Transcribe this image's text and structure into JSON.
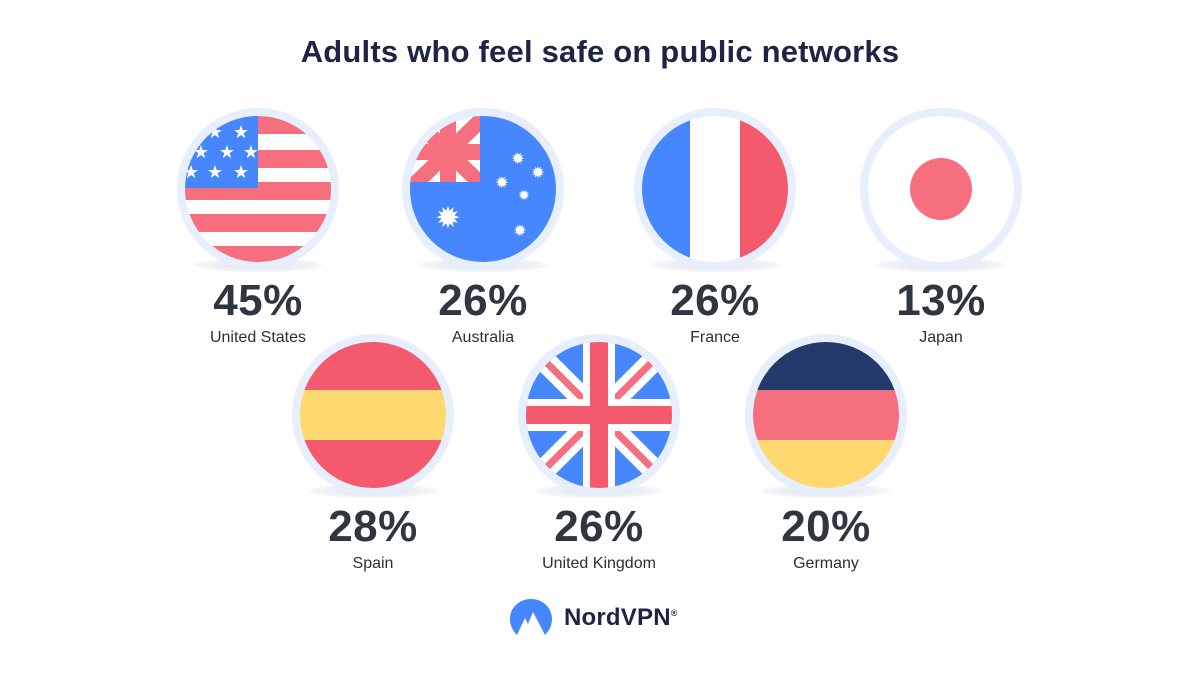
{
  "title": "Adults who feel safe on public networks",
  "chart_data": {
    "type": "bar",
    "title": "Adults who feel safe on public networks",
    "categories": [
      "United States",
      "Australia",
      "France",
      "Japan",
      "Spain",
      "United Kingdom",
      "Germany"
    ],
    "values": [
      45,
      26,
      26,
      13,
      28,
      26,
      20
    ],
    "value_labels": [
      "45%",
      "26%",
      "26%",
      "13%",
      "28%",
      "26%",
      "20%"
    ],
    "unit": "%"
  },
  "items": [
    {
      "country": "United States",
      "pct": "45%",
      "flag": "us-flag-icon"
    },
    {
      "country": "Australia",
      "pct": "26%",
      "flag": "australia-flag-icon"
    },
    {
      "country": "France",
      "pct": "26%",
      "flag": "france-flag-icon"
    },
    {
      "country": "Japan",
      "pct": "13%",
      "flag": "japan-flag-icon"
    },
    {
      "country": "Spain",
      "pct": "28%",
      "flag": "spain-flag-icon"
    },
    {
      "country": "United Kingdom",
      "pct": "26%",
      "flag": "uk-flag-icon"
    },
    {
      "country": "Germany",
      "pct": "20%",
      "flag": "germany-flag-icon"
    }
  ],
  "colors": {
    "blue": "#4687ff",
    "red": "#f45a6d",
    "pink": "#f56f7f",
    "yellow": "#ffd86f",
    "navy": "#233a6b",
    "ring": "#e7eefc",
    "title": "#1c2544"
  },
  "brand": {
    "name": "NordVPN",
    "mark": "®",
    "icon": "nordvpn-mountain-logo-icon"
  }
}
